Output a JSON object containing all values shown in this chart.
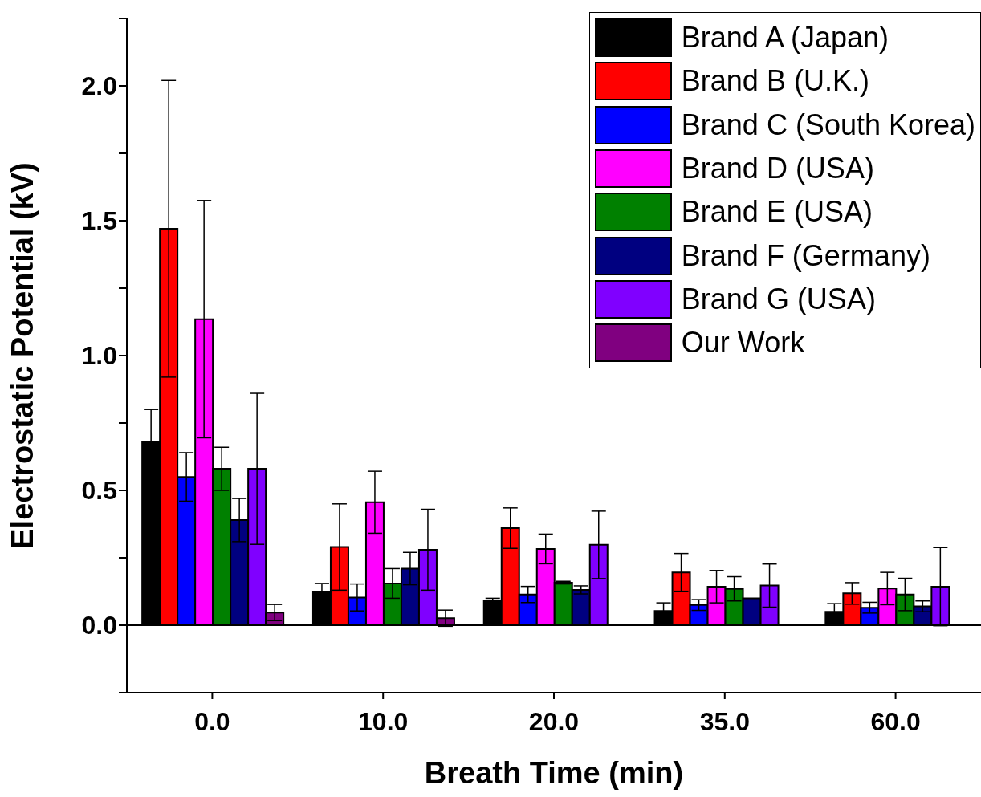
{
  "chart_data": {
    "type": "bar",
    "xlabel": "Breath Time (min)",
    "ylabel": "Electrostatic Potential (kV)",
    "categories": [
      "0.0",
      "10.0",
      "20.0",
      "35.0",
      "60.0"
    ],
    "series": [
      {
        "name": "Brand A (Japan)",
        "color": "#000000",
        "values": [
          0.68,
          0.125,
          0.09,
          0.053,
          0.05
        ],
        "errors": [
          0.12,
          0.03,
          0.01,
          0.03,
          0.03
        ]
      },
      {
        "name": "Brand B (U.K.)",
        "color": "#ff0000",
        "values": [
          1.47,
          0.29,
          0.36,
          0.196,
          0.118
        ],
        "errors": [
          0.55,
          0.16,
          0.075,
          0.07,
          0.04
        ]
      },
      {
        "name": "Brand C (South Korea)",
        "color": "#0000ff",
        "values": [
          0.55,
          0.103,
          0.114,
          0.075,
          0.065
        ],
        "errors": [
          0.09,
          0.05,
          0.03,
          0.02,
          0.02
        ]
      },
      {
        "name": "Brand D (USA)",
        "color": "#ff00ff",
        "values": [
          1.135,
          0.456,
          0.283,
          0.143,
          0.136
        ],
        "errors": [
          0.44,
          0.115,
          0.055,
          0.06,
          0.06
        ]
      },
      {
        "name": "Brand E (USA)",
        "color": "#008000",
        "values": [
          0.58,
          0.155,
          0.158,
          0.135,
          0.114
        ],
        "errors": [
          0.08,
          0.055,
          0.005,
          0.045,
          0.06
        ]
      },
      {
        "name": "Brand F (Germany)",
        "color": "#000080",
        "values": [
          0.39,
          0.21,
          0.131,
          0.1,
          0.07
        ],
        "errors": [
          0.08,
          0.06,
          0.015,
          null,
          0.02
        ]
      },
      {
        "name": "Brand G (USA)",
        "color": "#8000ff",
        "values": [
          0.58,
          0.28,
          0.298,
          0.147,
          0.143
        ],
        "errors": [
          0.28,
          0.15,
          0.125,
          0.08,
          0.145
        ]
      },
      {
        "name": "Our Work",
        "color": "#800080",
        "values": [
          0.047,
          0.026,
          null,
          null,
          null
        ],
        "errors": [
          0.03,
          0.03,
          null,
          null,
          null
        ]
      }
    ],
    "ylim": [
      -0.25,
      2.25
    ],
    "yticks": [
      {
        "value": -0.25,
        "label": null
      },
      {
        "value": 0,
        "label": "0.0"
      },
      {
        "value": 0.25,
        "label": null
      },
      0.5,
      {
        "value": 0.75,
        "label": null
      },
      {
        "value": 1,
        "label": "1.0"
      },
      {
        "value": 1.25,
        "label": null
      },
      1.5,
      {
        "value": 1.75,
        "label": null
      },
      {
        "value": 2,
        "label": "2.0"
      },
      {
        "value": 2.25,
        "label": null
      }
    ],
    "ref_lines": [
      {
        "axis": "y",
        "value": 0
      }
    ],
    "legend": "top right"
  }
}
